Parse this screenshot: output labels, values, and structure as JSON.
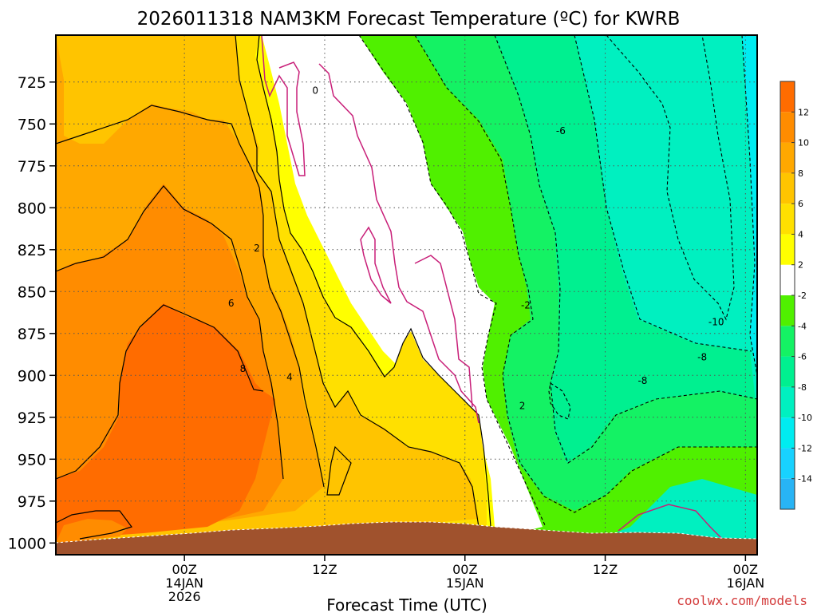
{
  "title": "2026011318 NAM3KM Forecast Temperature (ºC) for KWRB",
  "credit": "coolwx.com/models",
  "chart_data": {
    "type": "heatmap",
    "title": "2026011318 NAM3KM Forecast Temperature (ºC) for KWRB",
    "xlabel": "Forecast Time (UTC)",
    "ylabel": "",
    "x_range_hours": [
      -5,
      55
    ],
    "y_range_hpa": [
      1007,
      697
    ],
    "y_scale": "pressure-reversed",
    "grid": true,
    "y_ticks": [
      725,
      750,
      775,
      800,
      825,
      850,
      875,
      900,
      925,
      950,
      975,
      1000
    ],
    "x_ticks": [
      {
        "hour": 6,
        "label": [
          "00Z",
          "14JAN",
          "2026"
        ]
      },
      {
        "hour": 18,
        "label": [
          "12Z"
        ]
      },
      {
        "hour": 30,
        "label": [
          "00Z",
          "15JAN"
        ]
      },
      {
        "hour": 42,
        "label": [
          "12Z"
        ]
      },
      {
        "hour": 54,
        "label": [
          "00Z",
          "16JAN"
        ]
      }
    ],
    "colorbar": {
      "levels": [
        -16,
        -14,
        -12,
        -10,
        -8,
        -6,
        -4,
        -2,
        2,
        4,
        6,
        8,
        10,
        12,
        14
      ],
      "tick_labels": [
        "-14",
        "-12",
        "-10",
        "-8",
        "-6",
        "-4",
        "-2",
        "2",
        "4",
        "6",
        "8",
        "10",
        "12"
      ],
      "colors": [
        "#28b4f5",
        "#18d2ff",
        "#00ecf0",
        "#00f0c0",
        "#00f090",
        "#14f264",
        "#50f000",
        "#ffffff",
        "#ffff00",
        "#ffe000",
        "#ffc400",
        "#ffa800",
        "#ff8c00",
        "#ff6c00"
      ]
    },
    "contour_labels": [
      {
        "text": "0",
        "t": 17.2,
        "p": 732
      },
      {
        "text": "-6",
        "t": 38.2,
        "p": 756
      },
      {
        "text": "2",
        "t": 12.2,
        "p": 826
      },
      {
        "text": "6",
        "t": 10.0,
        "p": 859
      },
      {
        "text": "-2",
        "t": 35.2,
        "p": 860
      },
      {
        "text": "-10",
        "t": 51.5,
        "p": 870
      },
      {
        "text": "-8",
        "t": 50.3,
        "p": 891
      },
      {
        "text": "8",
        "t": 11.0,
        "p": 898
      },
      {
        "text": "4",
        "t": 15.0,
        "p": 903
      },
      {
        "text": "-8",
        "t": 45.2,
        "p": 905
      },
      {
        "text": "2",
        "t": 34.9,
        "p": 920
      }
    ],
    "color_domains": [
      {
        "name": "ground",
        "color": "#a0522d"
      },
      {
        "name": "t_ge_10",
        "color": "#ff6c00"
      },
      {
        "name": "t_8_10",
        "color": "#ff8c00"
      },
      {
        "name": "t_6_8",
        "color": "#ffa800"
      },
      {
        "name": "t_4_6",
        "color": "#ffc400"
      },
      {
        "name": "t_2_4",
        "color": "#ffe000"
      },
      {
        "name": "t_0_2",
        "color": "#ffff00"
      },
      {
        "name": "t_m2_2",
        "color": "#ffffff"
      },
      {
        "name": "t_m4_m2",
        "color": "#50f000"
      },
      {
        "name": "t_m6_m4",
        "color": "#14f264"
      },
      {
        "name": "t_m8_m6",
        "color": "#00f090"
      },
      {
        "name": "t_m10_m8",
        "color": "#00f0c0"
      },
      {
        "name": "t_m12_m10",
        "color": "#00ecf0"
      },
      {
        "name": "t_m14_m12",
        "color": "#18d2ff"
      }
    ]
  }
}
